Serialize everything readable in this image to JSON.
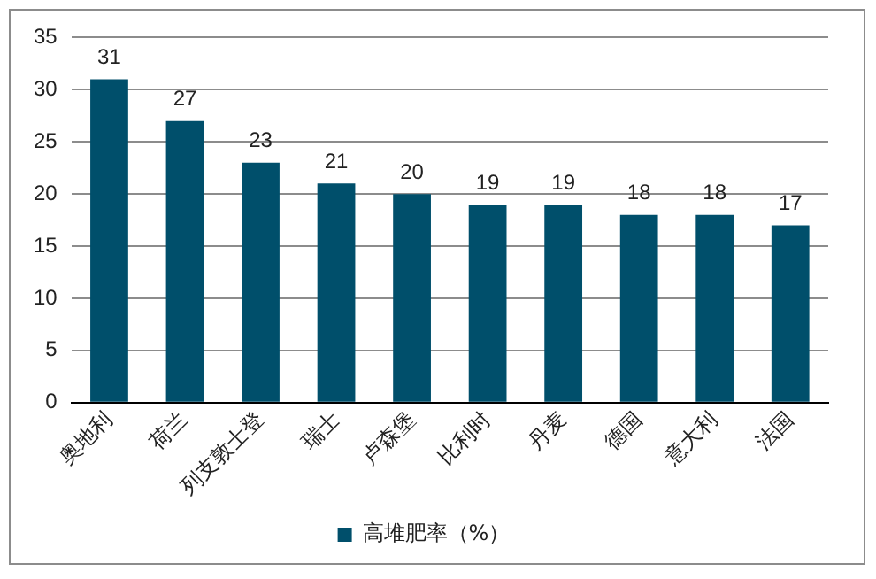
{
  "chart_data": {
    "type": "bar",
    "categories": [
      "奥地利",
      "荷兰",
      "列支敦士登",
      "瑞士",
      "卢森堡",
      "比利时",
      "丹麦",
      "德国",
      "意大利",
      "法国"
    ],
    "series": [
      {
        "name": "高堆肥率（%）",
        "color": "#004f6b",
        "values": [
          31,
          27,
          23,
          21,
          20,
          19,
          19,
          18,
          18,
          17
        ]
      }
    ],
    "ylim": [
      0,
      35
    ],
    "yticks": [
      0,
      5,
      10,
      15,
      20,
      25,
      30,
      35
    ],
    "grid": "y",
    "legend": "bottom",
    "data_labels": true
  }
}
